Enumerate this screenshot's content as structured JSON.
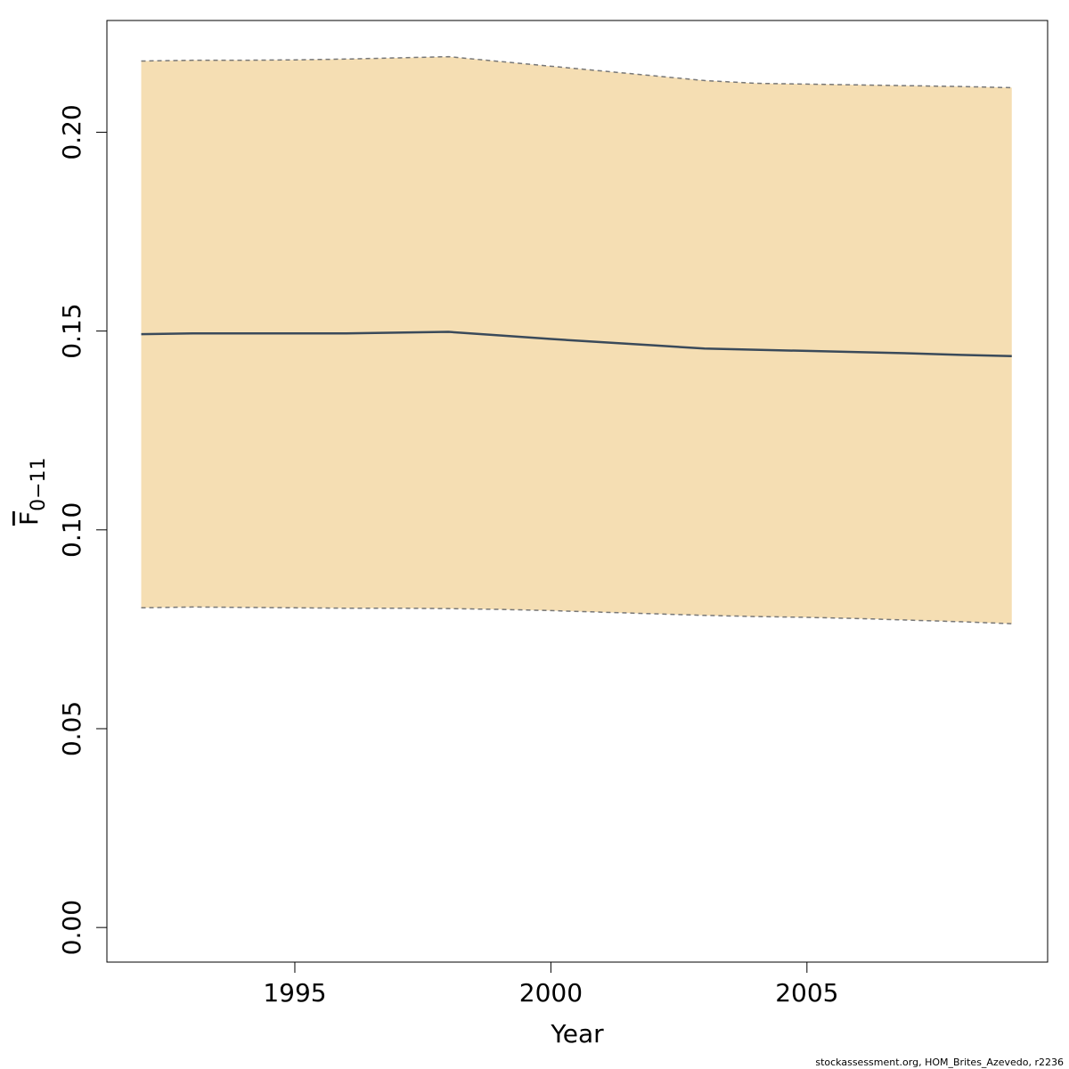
{
  "chart_data": {
    "type": "line",
    "x": [
      1992,
      1993,
      1994,
      1995,
      1996,
      1997,
      1998,
      1999,
      2000,
      2001,
      2002,
      2003,
      2004,
      2005,
      2006,
      2007,
      2008,
      2009
    ],
    "series": [
      {
        "color": "#3a4a5a",
        "values": [
          0.1492,
          0.1494,
          0.1494,
          0.1494,
          0.1494,
          0.1496,
          0.1498,
          0.1489,
          0.148,
          0.1472,
          0.1464,
          0.1456,
          0.1453,
          0.145,
          0.1447,
          0.1444,
          0.144,
          0.1437
        ]
      }
    ],
    "band": {
      "color": "#f5deb3",
      "line_color": "#777777",
      "upper": [
        0.2179,
        0.2181,
        0.2181,
        0.2182,
        0.2184,
        0.2187,
        0.219,
        0.2178,
        0.2166,
        0.2154,
        0.2142,
        0.213,
        0.2123,
        0.2121,
        0.2119,
        0.2117,
        0.2115,
        0.2112
      ],
      "lower": [
        0.0804,
        0.0806,
        0.0805,
        0.0804,
        0.0803,
        0.0803,
        0.0802,
        0.08,
        0.0797,
        0.0793,
        0.0789,
        0.0785,
        0.0782,
        0.078,
        0.0777,
        0.0773,
        0.0769,
        0.0764
      ]
    },
    "xlim": [
      1991.33,
      2009.7
    ],
    "xticks": [
      1995,
      2000,
      2005
    ],
    "ylim": [
      -0.0087,
      0.2281
    ],
    "yticks": [
      {
        "value": 0,
        "label": "0.00"
      },
      {
        "value": 0.05,
        "label": "0.05"
      },
      {
        "value": 0.1,
        "label": "0.10"
      },
      {
        "value": 0.15,
        "label": "0.15"
      },
      {
        "value": 0.2,
        "label": "0.20"
      }
    ],
    "xlabel": "Year",
    "ylabel": "F",
    "ylabel_subscript": "0−11",
    "footer": "stockassessment.org, HOM_Brites_Azevedo, r2236"
  }
}
